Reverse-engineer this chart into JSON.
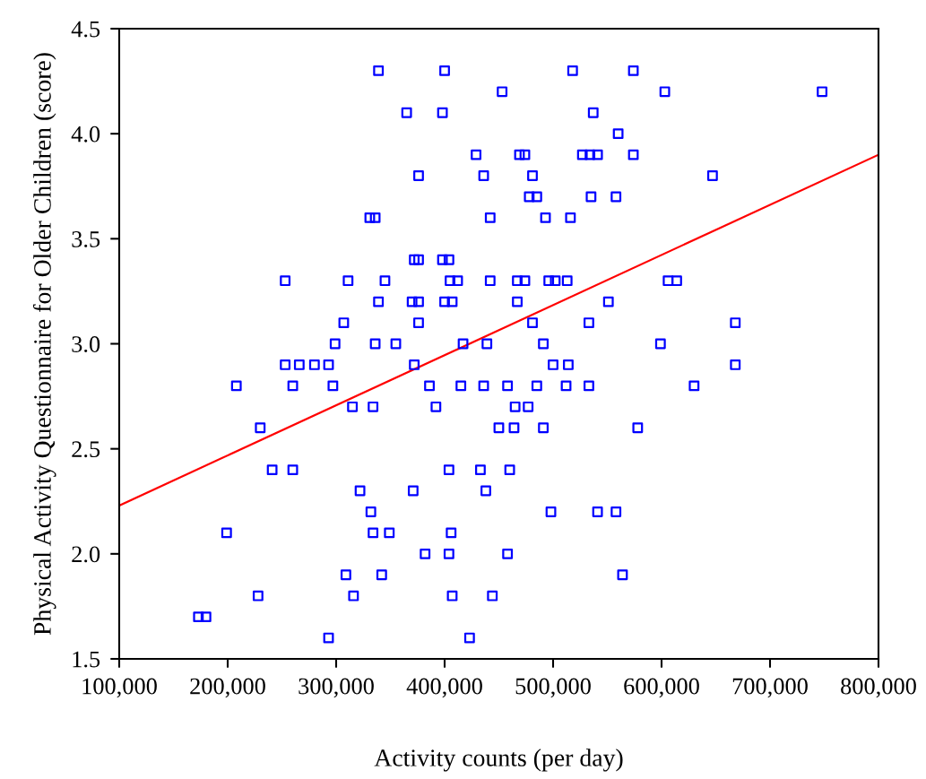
{
  "chart_data": {
    "type": "scatter",
    "xlabel": "Activity counts (per day)",
    "ylabel": "Physical Activity Questionnaire for Older Children (score)",
    "xlim": [
      100000,
      800000
    ],
    "ylim": [
      1.5,
      4.5
    ],
    "xticks": [
      {
        "value": 100000,
        "label": "100,000"
      },
      {
        "value": 200000,
        "label": "200,000"
      },
      {
        "value": 300000,
        "label": "300,000"
      },
      {
        "value": 400000,
        "label": "400,000"
      },
      {
        "value": 500000,
        "label": "500,000"
      },
      {
        "value": 600000,
        "label": "600,000"
      },
      {
        "value": 700000,
        "label": "700,000"
      },
      {
        "value": 800000,
        "label": "800,000"
      }
    ],
    "yticks": [
      1.5,
      {
        "value": 2,
        "label": "2.0"
      },
      2.5,
      {
        "value": 3,
        "label": "3.0"
      },
      3.5,
      {
        "value": 4,
        "label": "4.0"
      },
      4.5
    ],
    "grid": false,
    "marker": "square",
    "series": [
      {
        "color": "#0000ff",
        "x": [
          339000,
          400000,
          518000,
          574000,
          453000,
          603000,
          748000,
          365000,
          398000,
          537000,
          560000,
          429000,
          469000,
          474000,
          527000,
          534000,
          541000,
          574000,
          376000,
          436000,
          481000,
          647000,
          478000,
          485000,
          535000,
          558000,
          331000,
          336000,
          442000,
          493000,
          516000,
          372000,
          376000,
          398000,
          404000,
          253000,
          311000,
          345000,
          405000,
          412000,
          442000,
          467000,
          474000,
          496000,
          502000,
          513000,
          606000,
          614000,
          339000,
          370000,
          376000,
          400000,
          407000,
          467000,
          551000,
          307000,
          376000,
          481000,
          533000,
          668000,
          299000,
          336000,
          355000,
          417000,
          439000,
          491000,
          599000,
          253000,
          266000,
          280000,
          293000,
          372000,
          500000,
          514000,
          668000,
          208000,
          260000,
          297000,
          386000,
          415000,
          436000,
          458000,
          485000,
          512000,
          533000,
          630000,
          315000,
          334000,
          392000,
          465000,
          477000,
          230000,
          450000,
          464000,
          491000,
          578000,
          241000,
          260000,
          404000,
          433000,
          460000,
          322000,
          371000,
          438000,
          332000,
          498000,
          541000,
          558000,
          199000,
          334000,
          349000,
          406000,
          382000,
          404000,
          458000,
          309000,
          342000,
          564000,
          228000,
          316000,
          407000,
          444000,
          173000,
          180000,
          293000,
          423000
        ],
        "values": [
          4.3,
          4.3,
          4.3,
          4.3,
          4.2,
          4.2,
          4.2,
          4.1,
          4.1,
          4.1,
          4.0,
          3.9,
          3.9,
          3.9,
          3.9,
          3.9,
          3.9,
          3.9,
          3.8,
          3.8,
          3.8,
          3.8,
          3.7,
          3.7,
          3.7,
          3.7,
          3.6,
          3.6,
          3.6,
          3.6,
          3.6,
          3.4,
          3.4,
          3.4,
          3.4,
          3.3,
          3.3,
          3.3,
          3.3,
          3.3,
          3.3,
          3.3,
          3.3,
          3.3,
          3.3,
          3.3,
          3.3,
          3.3,
          3.2,
          3.2,
          3.2,
          3.2,
          3.2,
          3.2,
          3.2,
          3.1,
          3.1,
          3.1,
          3.1,
          3.1,
          3.0,
          3.0,
          3.0,
          3.0,
          3.0,
          3.0,
          3.0,
          2.9,
          2.9,
          2.9,
          2.9,
          2.9,
          2.9,
          2.9,
          2.9,
          2.8,
          2.8,
          2.8,
          2.8,
          2.8,
          2.8,
          2.8,
          2.8,
          2.8,
          2.8,
          2.8,
          2.7,
          2.7,
          2.7,
          2.7,
          2.7,
          2.6,
          2.6,
          2.6,
          2.6,
          2.6,
          2.4,
          2.4,
          2.4,
          2.4,
          2.4,
          2.3,
          2.3,
          2.3,
          2.2,
          2.2,
          2.2,
          2.2,
          2.1,
          2.1,
          2.1,
          2.1,
          2.0,
          2.0,
          2.0,
          1.9,
          1.9,
          1.9,
          1.8,
          1.8,
          1.8,
          1.8,
          1.7,
          1.7,
          1.6,
          1.6
        ]
      },
      {
        "type": "line",
        "color": "#ff0000",
        "marker": "none",
        "x": [
          100000,
          800000
        ],
        "values": [
          2.23,
          3.9
        ]
      }
    ]
  }
}
